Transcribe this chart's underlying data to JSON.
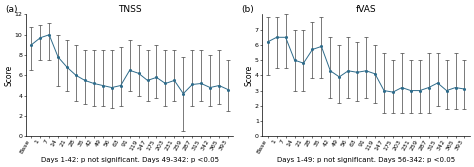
{
  "tnss": {
    "title": "TNSS",
    "ylabel": "Score",
    "panel_label": "(a)",
    "ylim": [
      0,
      12
    ],
    "yticks": [
      0,
      2,
      4,
      6,
      8,
      10,
      12
    ],
    "means": [
      9.0,
      9.7,
      10.0,
      7.8,
      6.8,
      6.0,
      5.5,
      5.2,
      5.0,
      4.8,
      5.0,
      6.5,
      6.2,
      5.5,
      5.8,
      5.2,
      5.5,
      4.2,
      5.1,
      5.2,
      4.8,
      5.0,
      4.6
    ],
    "lower": [
      6.5,
      7.5,
      7.5,
      5.0,
      4.5,
      3.5,
      3.2,
      3.0,
      3.0,
      2.8,
      3.0,
      4.5,
      4.0,
      3.5,
      3.8,
      3.0,
      3.5,
      0.5,
      3.0,
      3.5,
      3.0,
      3.2,
      2.5
    ],
    "upper": [
      10.8,
      11.0,
      11.2,
      10.0,
      9.5,
      9.0,
      8.5,
      8.5,
      8.5,
      8.5,
      8.8,
      9.5,
      9.0,
      8.5,
      9.0,
      8.5,
      8.5,
      7.8,
      8.5,
      8.5,
      8.0,
      8.5,
      7.5
    ],
    "xlabel_note": "Days 1-42: p not significant. Days 49-342: p <0.05",
    "x_labels": [
      "Base",
      "1",
      "7",
      "14",
      "21",
      "28",
      "35",
      "42",
      "49",
      "56",
      "63",
      "91",
      "119",
      "147",
      "175",
      "203",
      "231",
      "259",
      "287",
      "315",
      "342",
      "365",
      "393"
    ]
  },
  "fvas": {
    "title": "fVAS",
    "ylabel": "Score",
    "panel_label": "(b)",
    "ylim": [
      0,
      8
    ],
    "yticks": [
      0,
      1,
      2,
      3,
      4,
      5,
      6,
      7
    ],
    "means": [
      6.2,
      6.5,
      6.5,
      5.0,
      4.8,
      5.7,
      5.9,
      4.3,
      3.9,
      4.3,
      4.2,
      4.3,
      4.1,
      3.0,
      2.9,
      3.2,
      3.0,
      3.0,
      3.2,
      3.5,
      3.0,
      3.2,
      3.1
    ],
    "lower": [
      4.0,
      4.5,
      4.5,
      3.0,
      3.0,
      3.8,
      3.8,
      2.5,
      2.2,
      2.5,
      2.3,
      2.5,
      2.2,
      1.5,
      1.5,
      1.5,
      1.5,
      1.5,
      1.5,
      2.0,
      1.8,
      1.8,
      1.8
    ],
    "upper": [
      7.8,
      7.8,
      8.0,
      7.0,
      7.0,
      7.5,
      7.8,
      6.5,
      6.0,
      6.5,
      6.2,
      6.5,
      6.0,
      5.5,
      5.0,
      5.5,
      5.0,
      5.0,
      5.5,
      5.5,
      5.0,
      5.5,
      5.0
    ],
    "xlabel_note": "Days 1-49: p not significant. Days 56-342: p <0.05",
    "x_labels": [
      "Base",
      "1",
      "7",
      "14",
      "21",
      "28",
      "35",
      "42",
      "49",
      "56",
      "63",
      "91",
      "119",
      "147",
      "175",
      "203",
      "231",
      "259",
      "287",
      "315",
      "342",
      "365",
      "393"
    ]
  },
  "line_color": "#2e6b8a",
  "error_color": "#444444",
  "bg_color": "#ffffff",
  "font_size_title": 6.5,
  "font_size_label": 5.5,
  "font_size_tick": 4.5,
  "font_size_note": 5.0,
  "font_size_panel": 6.5
}
